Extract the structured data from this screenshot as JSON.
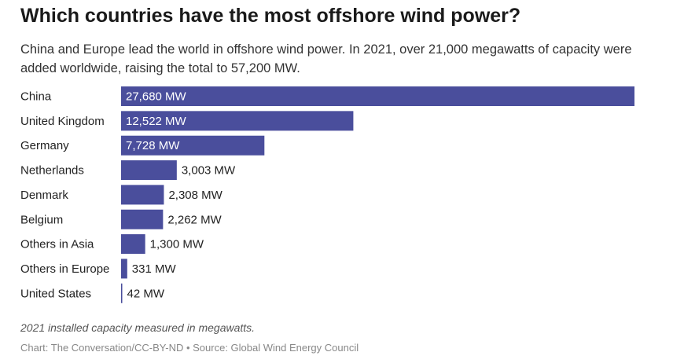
{
  "title": "Which countries have the most offshore wind power?",
  "subtitle": "China and Europe lead the world in offshore wind power. In 2021, over 21,000 megawatts of capacity were added worldwide, raising the total to 57,200 MW.",
  "note": "2021 installed capacity measured in megawatts.",
  "source": "Chart: The Conversation/CC-BY-ND • Source: Global Wind Energy Council",
  "chart_data": {
    "type": "bar",
    "orientation": "horizontal",
    "categories": [
      "China",
      "United Kingdom",
      "Germany",
      "Netherlands",
      "Denmark",
      "Belgium",
      "Others in Asia",
      "Others in Europe",
      "United States"
    ],
    "values": [
      27680,
      12522,
      7728,
      3003,
      2308,
      2262,
      1300,
      331,
      42
    ],
    "data_labels": [
      "27,680 MW",
      "12,522 MW",
      "7,728 MW",
      "3,003 MW",
      "2,308 MW",
      "2,262 MW",
      "1,300 MW",
      "331 MW",
      "42 MW"
    ],
    "unit": "MW",
    "grid": false,
    "bar_color": "#4a4e9c"
  }
}
